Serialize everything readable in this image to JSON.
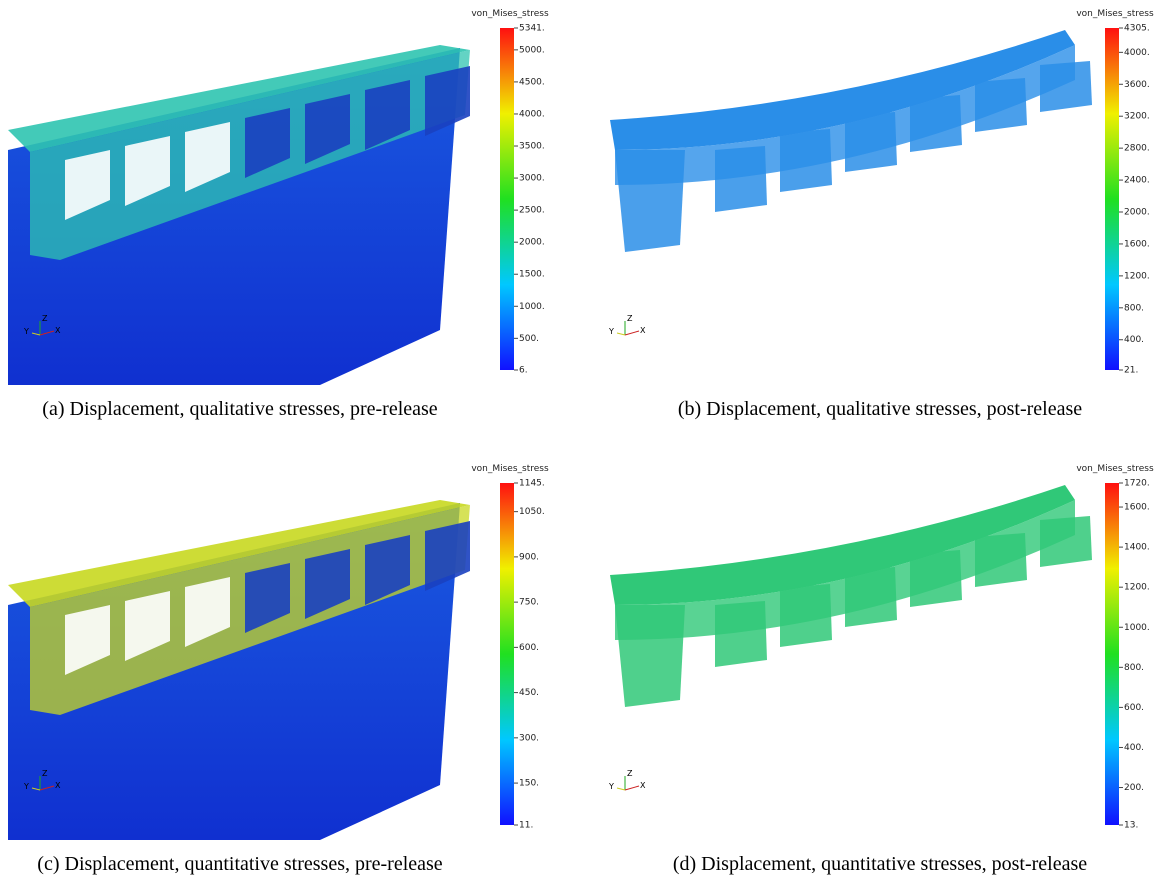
{
  "panels": [
    {
      "colorbar_title": "von_Mises_stress",
      "ticks": [
        "5341.",
        "5000.",
        "4500.",
        "4000.",
        "3500.",
        "3000.",
        "2500.",
        "2000.",
        "1500.",
        "1000.",
        "500.",
        "6."
      ],
      "axes": [
        "Z",
        "Y",
        "X"
      ],
      "caption": "(a)  Displacement, qualitative stresses, pre-release"
    },
    {
      "colorbar_title": "von_Mises_stress",
      "ticks": [
        "4305.",
        "4000.",
        "3600.",
        "3200.",
        "2800.",
        "2400.",
        "2000.",
        "1600.",
        "1200.",
        "800.",
        "400.",
        "21."
      ],
      "axes": [
        "Z",
        "Y",
        "X"
      ],
      "caption": "(b)  Displacement, qualitative stresses, post-release"
    },
    {
      "colorbar_title": "von_Mises_stress",
      "ticks": [
        "1145.",
        "1050.",
        "900.",
        "750.",
        "600.",
        "450.",
        "300.",
        "150.",
        "11."
      ],
      "axes": [
        "Z",
        "Y",
        "X"
      ],
      "caption": "(c)  Displacement, quantitative stresses, pre-release"
    },
    {
      "colorbar_title": "von_Mises_stress",
      "ticks": [
        "1720.",
        "1600.",
        "1400.",
        "1200.",
        "1000.",
        "800.",
        "600.",
        "400.",
        "200.",
        "13."
      ],
      "axes": [
        "Z",
        "Y",
        "X"
      ],
      "caption": "(d)  Displacement, quantitative stresses, post-release"
    }
  ]
}
